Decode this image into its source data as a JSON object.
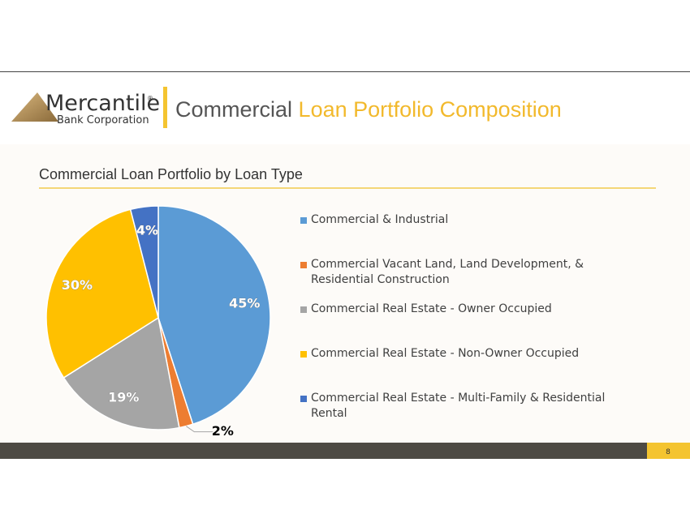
{
  "header": {
    "logo_name": "Mercantile",
    "logo_mark": "®",
    "logo_sub": "Bank Corporation",
    "title_part1": "Commercial",
    "title_part2": "Loan Portfolio Composition"
  },
  "chart_data": {
    "type": "pie",
    "title": "Commercial Loan Portfolio by Loan Type",
    "categories": [
      "Commercial & Industrial",
      "Commercial Vacant Land, Land Development, & Residential Construction",
      "Commercial Real Estate - Owner Occupied",
      "Commercial Real Estate - Non-Owner Occupied",
      "Commercial Real Estate - Multi-Family & Residential Rental"
    ],
    "values": [
      45,
      2,
      19,
      30,
      4
    ],
    "value_labels": [
      "45%",
      "2%",
      "19%",
      "30%",
      "4%"
    ],
    "colors": [
      "#5b9bd5",
      "#ed7d31",
      "#a5a5a5",
      "#ffc000",
      "#4472c4"
    ],
    "legend": "right"
  },
  "page_number": "8"
}
